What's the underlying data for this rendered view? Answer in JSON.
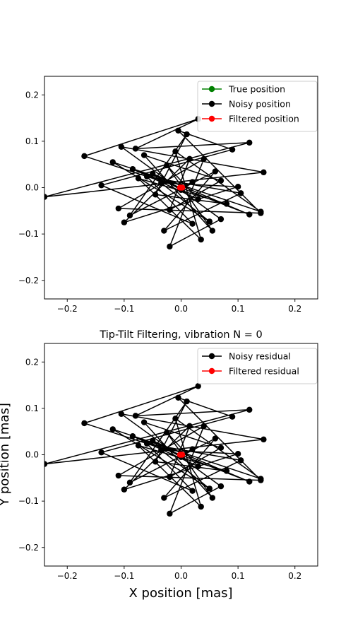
{
  "figure": {
    "shared_xlabel": "X position [mas]",
    "shared_ylabel": "Y position [mas]"
  },
  "chart_data": [
    {
      "type": "line",
      "title": "",
      "xlim": [
        -0.24,
        0.24
      ],
      "ylim": [
        -0.24,
        0.24
      ],
      "xticks": [
        "−0.2",
        "−0.1",
        "0.0",
        "0.1",
        "0.2"
      ],
      "yticks": [
        "−0.2",
        "−0.1",
        "0.0",
        "0.1",
        "0.2"
      ],
      "grid": false,
      "legend_position": "top-right",
      "series": [
        {
          "name": "True position",
          "color": "#008000",
          "marker": "circle",
          "x": [
            0,
            0
          ],
          "y": [
            0,
            0
          ]
        },
        {
          "name": "Noisy position",
          "color": "#000000",
          "marker": "circle",
          "x": [
            0.0,
            -0.17,
            0.03,
            -0.08,
            0.12,
            -0.24,
            0.145,
            -0.105,
            0.07,
            -0.02,
            0.04,
            -0.11,
            0.14,
            -0.005,
            0.09,
            -0.14,
            0.02,
            -0.06,
            0.105,
            -0.03,
            0.06,
            -0.09,
            0.01,
            -0.045,
            0.08,
            -0.075,
            0.035,
            -0.01,
            0.14,
            -0.12,
            0.05,
            -0.035,
            0.1,
            -0.1,
            0.015,
            -0.02,
            0.07,
            -0.065,
            0.055,
            -0.025,
            0.03,
            -0.085,
            0.12,
            -0.05,
            0.0,
            0.02,
            0.0
          ],
          "y": [
            0.0,
            0.068,
            0.148,
            0.084,
            0.097,
            -0.02,
            0.033,
            0.088,
            -0.068,
            -0.127,
            0.062,
            -0.045,
            -0.055,
            0.123,
            0.082,
            0.005,
            -0.078,
            0.024,
            -0.012,
            -0.093,
            0.035,
            -0.06,
            0.115,
            -0.015,
            -0.035,
            0.02,
            -0.112,
            0.078,
            -0.052,
            0.055,
            -0.073,
            0.01,
            0.002,
            -0.075,
            0.062,
            -0.048,
            0.015,
            0.07,
            -0.093,
            0.048,
            -0.025,
            0.04,
            -0.058,
            0.03,
            -0.005,
            0.012,
            0.0
          ]
        },
        {
          "name": "Filtered position",
          "color": "#ff0000",
          "marker": "circle",
          "x": [
            -0.002,
            0.0,
            0.002
          ],
          "y": [
            0.0,
            0.0,
            0.0
          ]
        }
      ]
    },
    {
      "type": "line",
      "title": "Tip-Tilt Filtering, vibration N = 0",
      "xlim": [
        -0.24,
        0.24
      ],
      "ylim": [
        -0.24,
        0.24
      ],
      "xticks": [
        "−0.2",
        "−0.1",
        "0.0",
        "0.1",
        "0.2"
      ],
      "yticks": [
        "−0.2",
        "−0.1",
        "0.0",
        "0.1",
        "0.2"
      ],
      "grid": false,
      "legend_position": "top-right",
      "series": [
        {
          "name": "Noisy residual",
          "color": "#000000",
          "marker": "circle",
          "x": [
            0.0,
            -0.17,
            0.03,
            -0.08,
            0.12,
            -0.24,
            0.145,
            -0.105,
            0.07,
            -0.02,
            0.04,
            -0.11,
            0.14,
            -0.005,
            0.09,
            -0.14,
            0.02,
            -0.06,
            0.105,
            -0.03,
            0.06,
            -0.09,
            0.01,
            -0.045,
            0.08,
            -0.075,
            0.035,
            -0.01,
            0.14,
            -0.12,
            0.05,
            -0.035,
            0.1,
            -0.1,
            0.015,
            -0.02,
            0.07,
            -0.065,
            0.055,
            -0.025,
            0.03,
            -0.085,
            0.12,
            -0.05,
            0.0,
            0.02,
            0.0
          ],
          "y": [
            0.0,
            0.068,
            0.148,
            0.084,
            0.097,
            -0.02,
            0.033,
            0.088,
            -0.068,
            -0.127,
            0.062,
            -0.045,
            -0.055,
            0.123,
            0.082,
            0.005,
            -0.078,
            0.024,
            -0.012,
            -0.093,
            0.035,
            -0.06,
            0.115,
            -0.015,
            -0.035,
            0.02,
            -0.112,
            0.078,
            -0.052,
            0.055,
            -0.073,
            0.01,
            0.002,
            -0.075,
            0.062,
            -0.048,
            0.015,
            0.07,
            -0.093,
            0.048,
            -0.025,
            0.04,
            -0.058,
            0.03,
            -0.005,
            0.012,
            0.0
          ]
        },
        {
          "name": "Filtered residual",
          "color": "#ff0000",
          "marker": "circle",
          "x": [
            -0.002,
            0.0,
            0.002
          ],
          "y": [
            0.0,
            0.0,
            0.0
          ]
        }
      ]
    }
  ]
}
